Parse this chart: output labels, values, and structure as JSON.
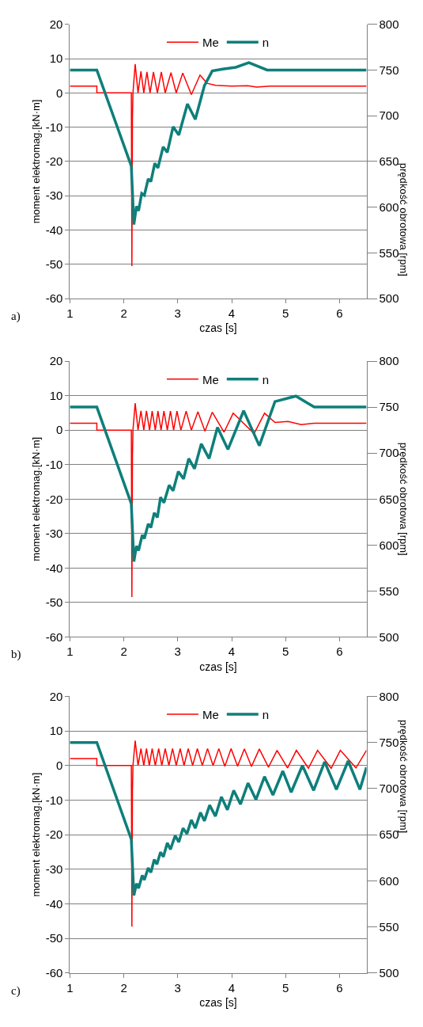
{
  "chart_data": [
    {
      "type": "line",
      "xlabel": "czas [s]",
      "ylabel": "moment elektromag.[kN·m]",
      "y2label": "prędkość obrotowa [rpm]",
      "annotations": [
        "a)"
      ],
      "xlim": [
        1,
        6.5
      ],
      "xticks": [
        1,
        2,
        3,
        4,
        5,
        6
      ],
      "ylim": [
        -60,
        20
      ],
      "yticks": [
        -60,
        -50,
        -40,
        -30,
        -20,
        -10,
        0,
        10,
        20
      ],
      "y2lim": [
        500,
        800
      ],
      "y2ticks": [
        500,
        550,
        600,
        650,
        700,
        750,
        800
      ],
      "grid": "y",
      "legend": "top",
      "series": [
        {
          "name": "Me",
          "color": "#ff0000",
          "x": [
            1,
            1.5,
            1.5,
            2.14,
            2.15,
            2.16,
            2.17,
            2.211,
            2.264,
            2.318,
            2.371,
            2.429,
            2.487,
            2.55,
            2.623,
            2.696,
            2.768,
            2.875,
            2.972,
            3.093,
            3.253,
            3.413,
            3.544,
            3.7,
            4.0,
            4.3,
            4.46,
            4.71,
            6.5
          ],
          "values": [
            2,
            2,
            0,
            0,
            -50.5,
            -7.4,
            0,
            8.4,
            0,
            6.3,
            0,
            6.1,
            0,
            6.1,
            0,
            6.1,
            0,
            5.9,
            0,
            5.8,
            -0.5,
            5.2,
            2.8,
            2.2,
            2.0,
            2.1,
            1.7,
            2,
            2
          ]
        },
        {
          "name": "n",
          "color": "#0e7f7a",
          "axis": "y2",
          "x": [
            1,
            1.5,
            2.139,
            2.187,
            2.235,
            2.274,
            2.332,
            2.381,
            2.453,
            2.502,
            2.575,
            2.633,
            2.73,
            2.807,
            2.914,
            3.02,
            3.18,
            3.326,
            3.495,
            3.64,
            3.834,
            4.077,
            4.319,
            4.658,
            6.5
          ],
          "values": [
            750,
            750,
            645,
            581,
            601,
            596,
            615,
            613,
            631,
            628,
            648,
            643,
            666,
            660,
            688,
            679,
            713,
            696,
            733,
            749,
            751,
            753,
            758,
            750,
            750
          ]
        }
      ]
    },
    {
      "type": "line",
      "xlabel": "czas [s]",
      "ylabel": "moment elektromag.[kN·m]",
      "y2label": "prędkość obrotowa [rpm]",
      "annotations": [
        "b)"
      ],
      "xlim": [
        1,
        6.5
      ],
      "xticks": [
        1,
        2,
        3,
        4,
        5,
        6
      ],
      "ylim": [
        -60,
        20
      ],
      "yticks": [
        -60,
        -50,
        -40,
        -30,
        -20,
        -10,
        0,
        10,
        20
      ],
      "y2lim": [
        500,
        800
      ],
      "y2ticks": [
        500,
        550,
        600,
        650,
        700,
        750,
        800
      ],
      "grid": "y",
      "legend": "top",
      "series": [
        {
          "name": "Me",
          "color": "#ff0000",
          "x": [
            1,
            1.5,
            1.5,
            2.14,
            2.15,
            2.16,
            2.17,
            2.211,
            2.264,
            2.318,
            2.371,
            2.42,
            2.478,
            2.526,
            2.584,
            2.633,
            2.691,
            2.744,
            2.807,
            2.865,
            2.924,
            2.986,
            3.059,
            3.156,
            3.253,
            3.374,
            3.505,
            3.641,
            3.859,
            4.028,
            4.416,
            4.61,
            4.803,
            5.046,
            5.288,
            5.53,
            6.5
          ],
          "values": [
            2,
            2,
            0,
            0,
            -48.4,
            -7.9,
            0,
            7.8,
            0,
            5.6,
            0,
            5.6,
            0,
            5.5,
            0,
            5.5,
            0,
            5.5,
            0,
            5.5,
            0,
            5.5,
            0,
            5.5,
            0,
            5.3,
            -0.3,
            5.2,
            -0.6,
            4.9,
            -1,
            4.9,
            2.2,
            2.5,
            1.6,
            2,
            2
          ]
        },
        {
          "name": "n",
          "color": "#0e7f7a",
          "axis": "y2",
          "x": [
            1,
            1.5,
            2.139,
            2.187,
            2.235,
            2.274,
            2.342,
            2.381,
            2.453,
            2.502,
            2.565,
            2.623,
            2.681,
            2.744,
            2.841,
            2.914,
            3.011,
            3.108,
            3.204,
            3.311,
            3.437,
            3.582,
            3.737,
            3.931,
            4.222,
            4.513,
            4.803,
            5.191,
            5.53,
            6.5
          ],
          "values": [
            750,
            750,
            645,
            582,
            599,
            594,
            611,
            607,
            623,
            619,
            635,
            630,
            652,
            646,
            665,
            659,
            680,
            672,
            694,
            683,
            710,
            694,
            728,
            704,
            746,
            708,
            756,
            762,
            750,
            750
          ]
        }
      ]
    },
    {
      "type": "line",
      "xlabel": "czas [s]",
      "ylabel": "moment elektromag.[kN·m]",
      "y2label": "prędkość obrotowa [rpm]",
      "annotations": [
        "c)"
      ],
      "xlim": [
        1,
        6.5
      ],
      "xticks": [
        1,
        2,
        3,
        4,
        5,
        6
      ],
      "ylim": [
        -60,
        20
      ],
      "yticks": [
        -60,
        -50,
        -40,
        -30,
        -20,
        -10,
        0,
        10,
        20
      ],
      "y2lim": [
        500,
        800
      ],
      "y2ticks": [
        500,
        550,
        600,
        650,
        700,
        750,
        800
      ],
      "grid": "y",
      "legend": "top",
      "series": [
        {
          "name": "Me",
          "color": "#ff0000",
          "x": [
            1,
            1.5,
            1.5,
            2.14,
            2.15,
            2.16,
            2.17,
            2.211,
            2.264,
            2.318,
            2.371,
            2.42,
            2.473,
            2.526,
            2.584,
            2.647,
            2.705,
            2.768,
            2.836,
            2.904,
            2.972,
            3.045,
            3.117,
            3.195,
            3.277,
            3.364,
            3.456,
            3.553,
            3.655,
            3.762,
            3.873,
            3.989,
            4.11,
            4.236,
            4.367,
            4.513,
            4.682,
            4.842,
            5.036,
            5.2,
            5.423,
            5.593,
            5.845,
            6.015,
            6.305,
            6.5
          ],
          "values": [
            2,
            2,
            0,
            0,
            -46.6,
            -7.5,
            0,
            7.2,
            0,
            4.9,
            0,
            4.9,
            0,
            4.9,
            0,
            4.9,
            0,
            4.9,
            0,
            4.9,
            0,
            4.9,
            0,
            4.9,
            0,
            4.9,
            0,
            4.9,
            0,
            4.9,
            -0.2,
            4.9,
            -0.2,
            4.8,
            -0.3,
            4.8,
            -0.5,
            4.4,
            -0.7,
            4.4,
            -0.8,
            4.4,
            -0.8,
            4.4,
            -0.7,
            4.4
          ]
        },
        {
          "name": "n",
          "color": "#0e7f7a",
          "axis": "y2",
          "x": [
            1,
            1.5,
            2.139,
            2.187,
            2.235,
            2.274,
            2.342,
            2.381,
            2.453,
            2.502,
            2.565,
            2.613,
            2.681,
            2.734,
            2.807,
            2.865,
            2.953,
            3.02,
            3.098,
            3.171,
            3.253,
            3.326,
            3.422,
            3.495,
            3.592,
            3.699,
            3.81,
            3.921,
            4.038,
            4.164,
            4.304,
            4.45,
            4.609,
            4.765,
            4.949,
            5.104,
            5.312,
            5.52,
            5.724,
            5.942,
            6.16,
            6.378,
            6.5
          ],
          "values": [
            750,
            750,
            645,
            584,
            597,
            592,
            606,
            601,
            614,
            609,
            623,
            618,
            631,
            626,
            641,
            634,
            649,
            642,
            657,
            651,
            666,
            657,
            674,
            665,
            682,
            670,
            691,
            677,
            698,
            683,
            706,
            688,
            713,
            693,
            719,
            696,
            725,
            698,
            729,
            699,
            730,
            699,
            723
          ]
        }
      ]
    }
  ]
}
